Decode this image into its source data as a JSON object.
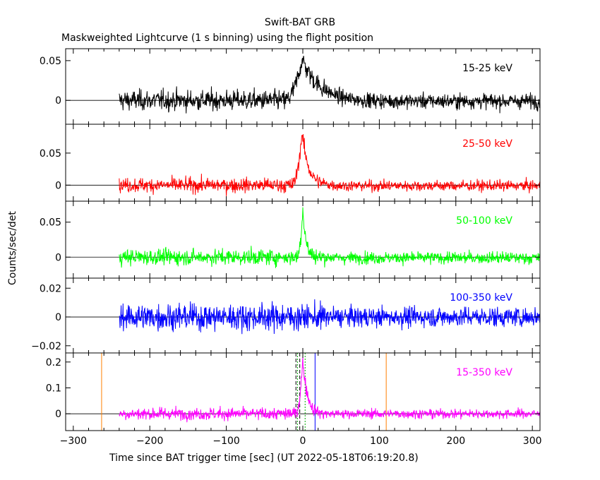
{
  "header": {
    "title": "Swift-BAT GRB",
    "subtitle": "Maskweighted Lightcurve (1 s binning) using the flight position"
  },
  "axes": {
    "xlabel": "Time since BAT trigger time [sec] (UT 2022-05-18T06:19:20.8)",
    "ylabel": "Counts/sec/det"
  },
  "chart_data": [
    {
      "type": "line",
      "band": "15-25 keV",
      "color": "#000000",
      "xlim": [
        -310,
        310
      ],
      "ylim": [
        -0.03,
        0.065
      ],
      "yticks": [
        {
          "v": 0,
          "label": "0"
        },
        {
          "v": 0.05,
          "label": "0.05"
        }
      ],
      "x_start": -240,
      "x_end": 310,
      "noise": 0.009,
      "pulse": {
        "peak": 0.052,
        "rise_start": -25,
        "peak_time": -1,
        "decay": 22
      },
      "baseline_after": -0.001
    },
    {
      "type": "line",
      "band": "25-50 keV",
      "color": "#ff0000",
      "xlim": [
        -310,
        310
      ],
      "ylim": [
        -0.025,
        0.095
      ],
      "yticks": [
        {
          "v": 0,
          "label": "0"
        },
        {
          "v": 0.05,
          "label": "0.05"
        }
      ],
      "x_start": -240,
      "x_end": 310,
      "noise": 0.008,
      "pulse": {
        "peak": 0.082,
        "rise_start": -15,
        "peak_time": -1,
        "decay": 8
      },
      "baseline_after": -0.001
    },
    {
      "type": "line",
      "band": "50-100 keV",
      "color": "#00ff00",
      "xlim": [
        -310,
        310
      ],
      "ylim": [
        -0.03,
        0.08
      ],
      "yticks": [
        {
          "v": 0,
          "label": "0"
        },
        {
          "v": 0.05,
          "label": "0.05"
        }
      ],
      "x_start": -240,
      "x_end": 310,
      "noise": 0.008,
      "pulse": {
        "peak": 0.07,
        "rise_start": -8,
        "peak_time": 0,
        "decay": 4
      },
      "baseline_after": -0.001
    },
    {
      "type": "line",
      "band": "100-350 keV",
      "color": "#0000ff",
      "xlim": [
        -310,
        310
      ],
      "ylim": [
        -0.025,
        0.027
      ],
      "yticks": [
        {
          "v": -0.02,
          "label": "−0.02"
        },
        {
          "v": 0,
          "label": "0"
        },
        {
          "v": 0.02,
          "label": "0.02"
        }
      ],
      "x_start": -240,
      "x_end": 310,
      "noise": 0.0065,
      "pulse": null,
      "baseline_after": 0
    },
    {
      "type": "line",
      "band": "15-350 keV",
      "color": "#ff00ff",
      "xlim": [
        -310,
        310
      ],
      "ylim": [
        -0.065,
        0.235
      ],
      "yticks": [
        {
          "v": 0,
          "label": "0"
        },
        {
          "v": 0.1,
          "label": "0.1"
        },
        {
          "v": 0.2,
          "label": "0.2"
        }
      ],
      "x_start": -240,
      "x_end": 310,
      "noise": 0.017,
      "pulse": {
        "peak": 0.205,
        "rise_start": -10,
        "peak_time": 0,
        "decay": 6
      },
      "baseline_after": 0,
      "markers": [
        {
          "x": -263,
          "color": "#ff7f00",
          "style": "solid"
        },
        {
          "x": 109,
          "color": "#ff7f00",
          "style": "solid"
        },
        {
          "x": 16,
          "color": "#0000ff",
          "style": "solid"
        },
        {
          "x": -9,
          "color": "#000000",
          "style": "dashed"
        },
        {
          "x": -4,
          "color": "#000000",
          "style": "dashed"
        },
        {
          "x": -7,
          "color": "#00aa00",
          "style": "dotted"
        },
        {
          "x": 3,
          "color": "#00aa00",
          "style": "dotted"
        }
      ]
    }
  ],
  "x_axis": {
    "ticks": [
      -300,
      -200,
      -100,
      0,
      100,
      200,
      300
    ],
    "tick_labels": [
      "−300",
      "−200",
      "−100",
      "0",
      "100",
      "200",
      "300"
    ]
  }
}
